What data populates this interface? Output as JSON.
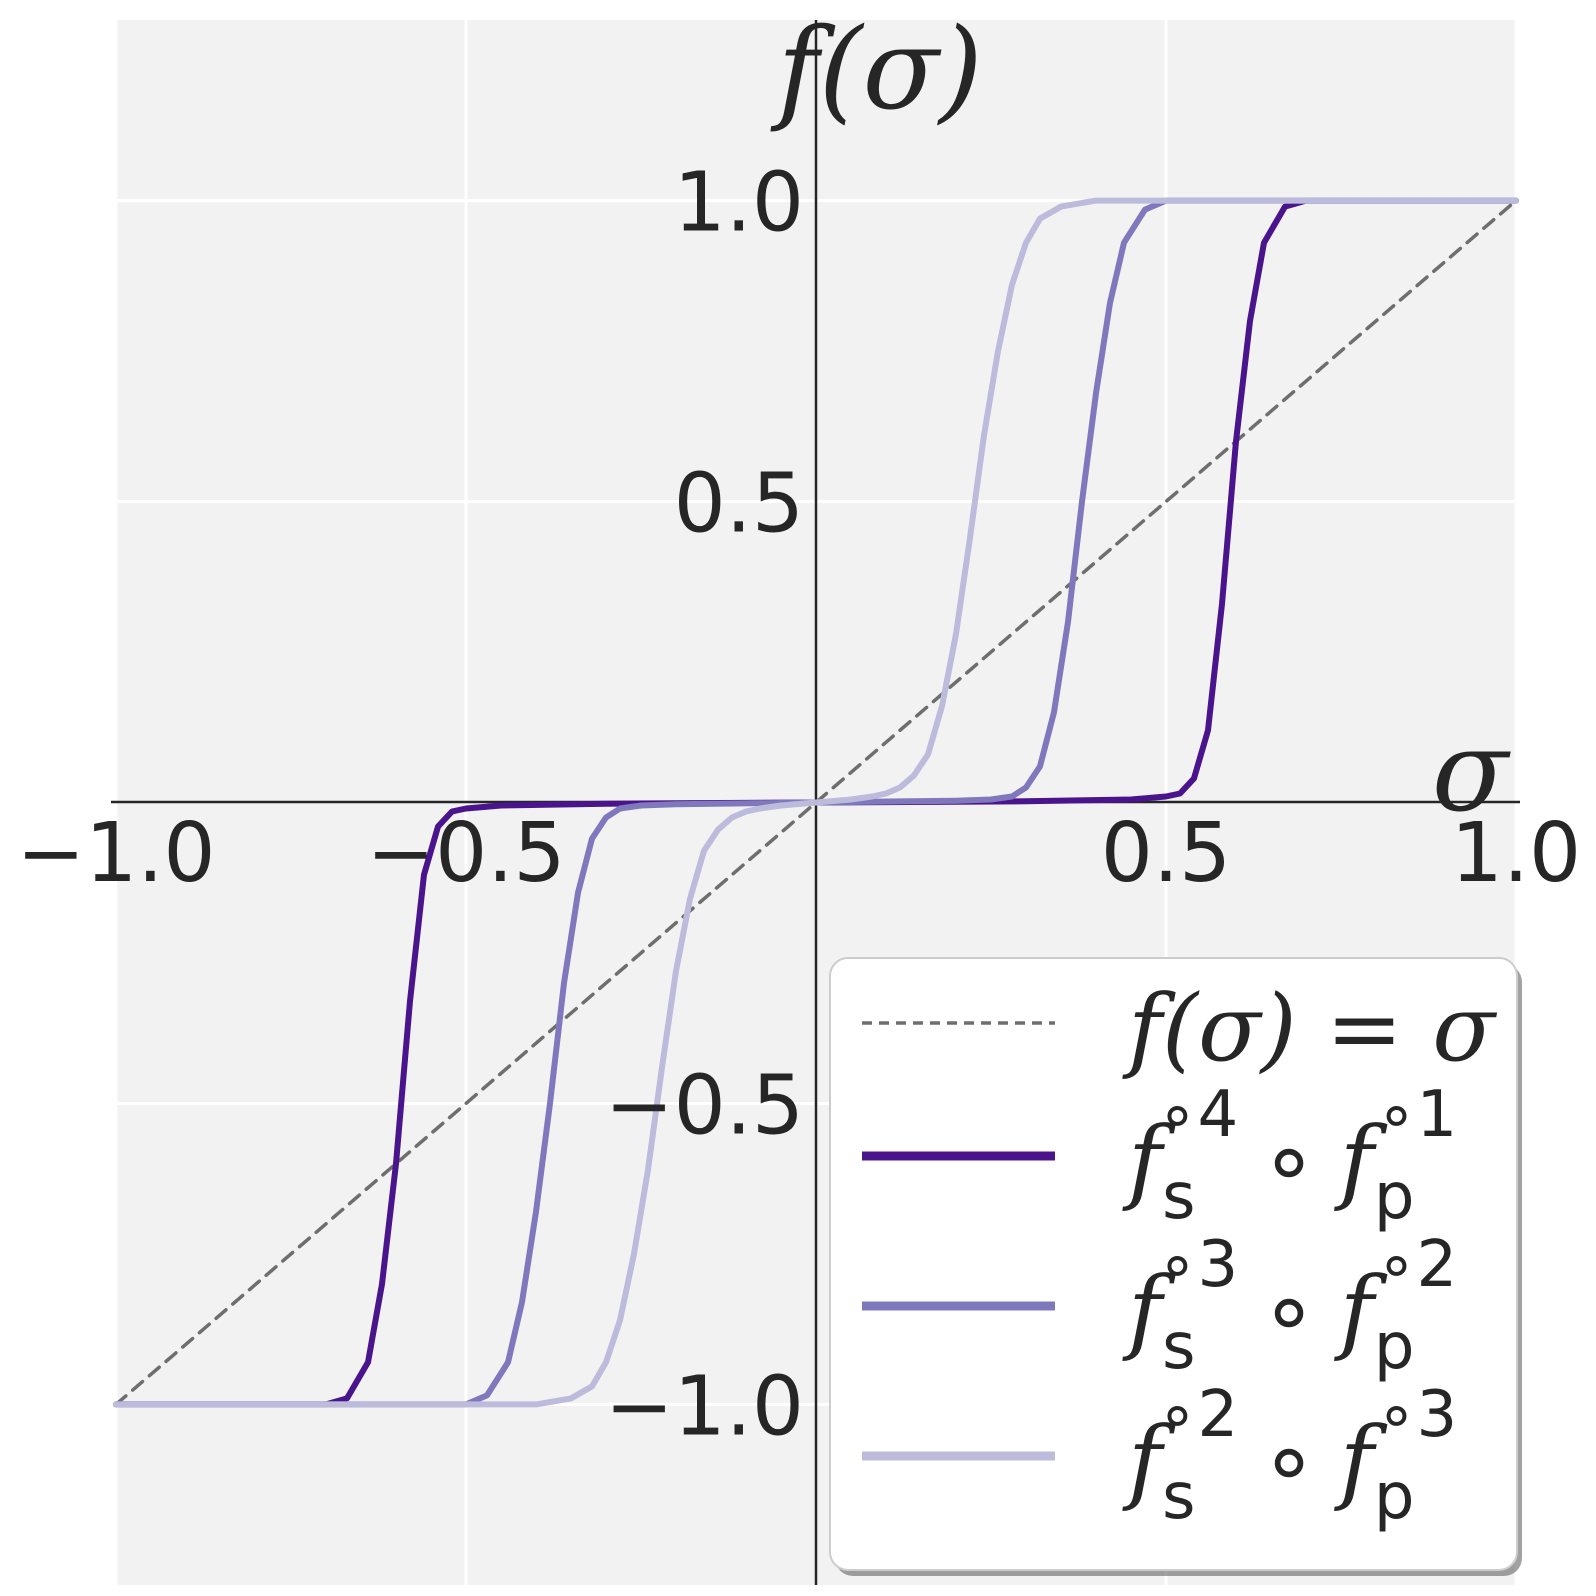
{
  "chart_data": {
    "type": "line",
    "xlabel": "σ",
    "ylabel": "f(σ)",
    "xlim": [
      -1.0,
      1.0
    ],
    "ylim": [
      -1.3,
      1.3
    ],
    "xticks": [
      -1.0,
      -0.5,
      0.5,
      1.0
    ],
    "xtick_labels": [
      "−1.0",
      "−0.5",
      "0.5",
      "1.0"
    ],
    "yticks": [
      -1.0,
      -0.5,
      0.5,
      1.0
    ],
    "ytick_labels": [
      "−1.0",
      "−0.5",
      "0.5",
      "1.0"
    ],
    "grid": true,
    "background": "#f2f2f2",
    "legend_position": "lower-right",
    "series": [
      {
        "name": "f(σ) = σ",
        "label": {
          "main": "f(σ) = σ"
        },
        "style": "dashed",
        "color": "#6e6e6e",
        "x": [
          -1.0,
          1.0
        ],
        "y": [
          -1.0,
          1.0
        ]
      },
      {
        "name": "fs∘4 ∘ fp∘1",
        "label": {
          "f1": "f",
          "sub1": "s",
          "sup1": "∘4",
          "op": "∘",
          "f2": "f",
          "sub2": "p",
          "sup2": "∘1"
        },
        "style": "solid",
        "color": "#4a148c",
        "x": [
          -1.0,
          -0.7,
          -0.67,
          -0.64,
          -0.62,
          -0.6,
          -0.58,
          -0.56,
          -0.54,
          -0.52,
          -0.5,
          -0.45,
          -0.3,
          0.0,
          0.3,
          0.45,
          0.5,
          0.52,
          0.54,
          0.56,
          0.58,
          0.6,
          0.62,
          0.64,
          0.67,
          0.7,
          1.0
        ],
        "y": [
          -1.0,
          -1.0,
          -0.99,
          -0.93,
          -0.8,
          -0.6,
          -0.33,
          -0.12,
          -0.04,
          -0.015,
          -0.01,
          -0.005,
          -0.002,
          0.0,
          0.002,
          0.005,
          0.01,
          0.015,
          0.04,
          0.12,
          0.33,
          0.6,
          0.8,
          0.93,
          0.99,
          1.0,
          1.0
        ]
      },
      {
        "name": "fs∘3 ∘ fp∘2",
        "label": {
          "f1": "f",
          "sub1": "s",
          "sup1": "∘3",
          "op": "∘",
          "f2": "f",
          "sub2": "p",
          "sup2": "∘2"
        },
        "style": "solid",
        "color": "#8078bd",
        "x": [
          -1.0,
          -0.5,
          -0.47,
          -0.44,
          -0.42,
          -0.4,
          -0.38,
          -0.36,
          -0.34,
          -0.32,
          -0.3,
          -0.28,
          -0.25,
          -0.2,
          0.0,
          0.2,
          0.25,
          0.28,
          0.3,
          0.32,
          0.34,
          0.36,
          0.38,
          0.4,
          0.42,
          0.44,
          0.47,
          0.5,
          1.0
        ],
        "y": [
          -1.0,
          -1.0,
          -0.985,
          -0.93,
          -0.83,
          -0.68,
          -0.5,
          -0.3,
          -0.15,
          -0.06,
          -0.025,
          -0.01,
          -0.005,
          -0.003,
          0.0,
          0.003,
          0.005,
          0.01,
          0.025,
          0.06,
          0.15,
          0.3,
          0.5,
          0.68,
          0.83,
          0.93,
          0.985,
          1.0,
          1.0
        ]
      },
      {
        "name": "fs∘2 ∘ fp∘3",
        "label": {
          "f1": "f",
          "sub1": "s",
          "sup1": "∘2",
          "op": "∘",
          "f2": "f",
          "sub2": "p",
          "sup2": "∘3"
        },
        "style": "solid",
        "color": "#bcbbdc",
        "x": [
          -1.0,
          -0.4,
          -0.35,
          -0.32,
          -0.3,
          -0.28,
          -0.26,
          -0.24,
          -0.22,
          -0.2,
          -0.18,
          -0.16,
          -0.14,
          -0.12,
          -0.1,
          -0.08,
          -0.05,
          0.0,
          0.05,
          0.08,
          0.1,
          0.12,
          0.14,
          0.16,
          0.18,
          0.2,
          0.22,
          0.24,
          0.26,
          0.28,
          0.3,
          0.32,
          0.35,
          0.4,
          1.0
        ],
        "y": [
          -1.0,
          -1.0,
          -0.99,
          -0.97,
          -0.93,
          -0.86,
          -0.75,
          -0.61,
          -0.44,
          -0.28,
          -0.16,
          -0.08,
          -0.045,
          -0.025,
          -0.015,
          -0.01,
          -0.005,
          0.0,
          0.005,
          0.01,
          0.015,
          0.025,
          0.045,
          0.08,
          0.16,
          0.28,
          0.44,
          0.61,
          0.75,
          0.86,
          0.93,
          0.97,
          0.99,
          1.0,
          1.0
        ]
      }
    ]
  }
}
